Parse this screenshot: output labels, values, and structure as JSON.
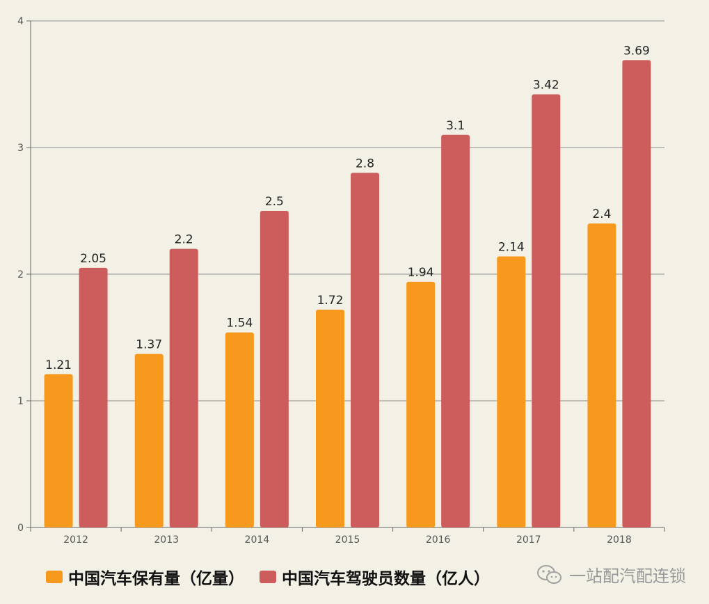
{
  "chart_data": {
    "type": "bar",
    "categories": [
      "2012",
      "2013",
      "2014",
      "2015",
      "2016",
      "2017",
      "2018"
    ],
    "series": [
      {
        "name": "中国汽车保有量（亿量）",
        "color": "#f7991c",
        "values": [
          1.21,
          1.37,
          1.54,
          1.72,
          1.94,
          2.14,
          2.4
        ],
        "labels": [
          "1.21",
          "1.37",
          "1.54",
          "1.72",
          "1.94",
          "2.14",
          "2.4"
        ]
      },
      {
        "name": "中国汽车驾驶员数量（亿人）",
        "color": "#cd5c5c",
        "values": [
          2.05,
          2.2,
          2.5,
          2.8,
          3.1,
          3.42,
          3.69
        ],
        "labels": [
          "2.05",
          "2.2",
          "2.5",
          "2.8",
          "3.1",
          "3.42",
          "3.69"
        ]
      }
    ],
    "yticks": [
      "0",
      "1",
      "2",
      "3",
      "4"
    ],
    "ylim": [
      0,
      4
    ],
    "grid": true,
    "legend_position": "bottom-left"
  },
  "watermark": {
    "text": "一站配汽配连锁",
    "icon": "wechat-icon"
  }
}
